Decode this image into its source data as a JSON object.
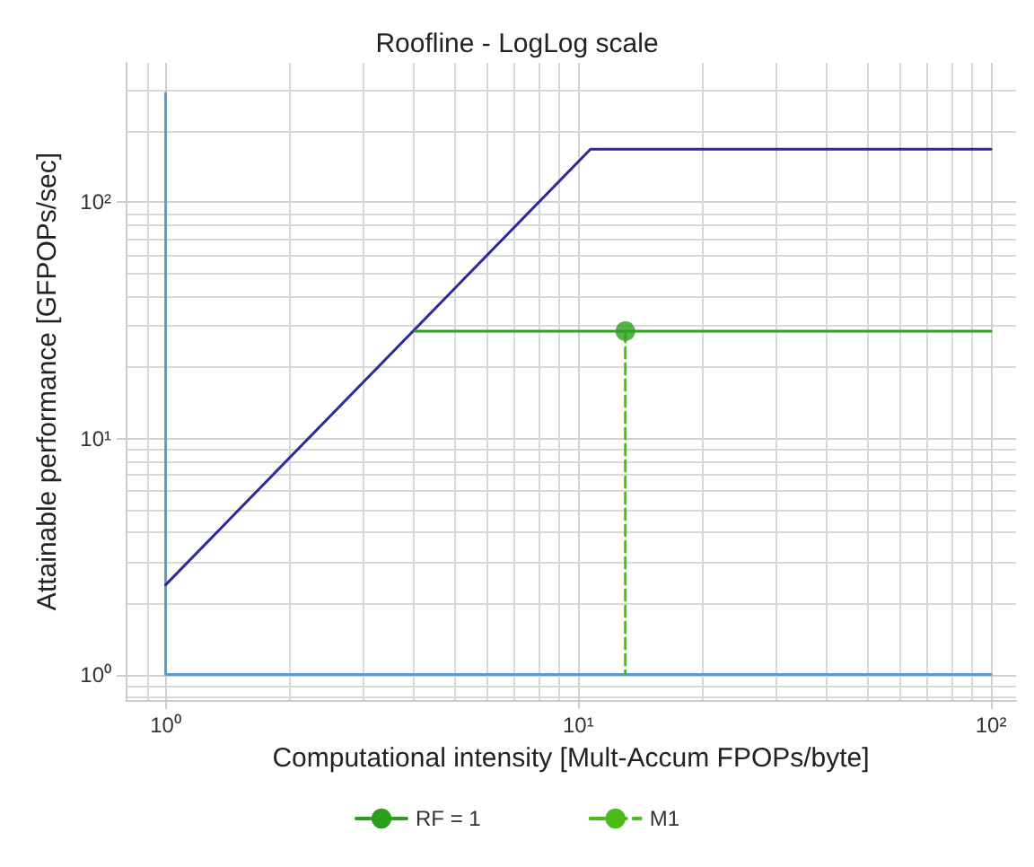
{
  "chart_data": {
    "type": "line",
    "title": "Roofline - LogLog scale",
    "xlabel": "Computational intensity [Mult-Accum FPOPs/byte]",
    "ylabel": "Attainable performance [GFPOPs/sec]",
    "log": "xy",
    "grid": true,
    "legend": "bottom",
    "marker": "none",
    "line_style": "solid",
    "xlim": [
      0.8,
      115
    ],
    "ylim": [
      0.78,
      390
    ],
    "xticks": [
      {
        "value": 1,
        "label": "10⁰"
      },
      {
        "value": 10,
        "label": "10¹"
      },
      {
        "value": 100,
        "label": "10²"
      }
    ],
    "yticks": [
      {
        "value": 1,
        "label": "10⁰"
      },
      {
        "value": 10,
        "label": "10¹"
      },
      {
        "value": 100,
        "label": "10²"
      }
    ],
    "series": [
      {
        "color": "#5b9bd5",
        "x": [
          1,
          1,
          100
        ],
        "values": [
          290,
          1,
          1
        ]
      },
      {
        "color": "#2e2a98",
        "x": [
          1,
          10.7,
          100
        ],
        "values": [
          2.4,
          168,
          168
        ]
      },
      {
        "name": "RF = 1",
        "color": "#2ca01c",
        "x": [
          4.02,
          100
        ],
        "values": [
          28.5,
          28.5
        ]
      },
      {
        "name": "M1",
        "color": "#4cbb17",
        "line_style": "dashed",
        "x": [
          13,
          13
        ],
        "values": [
          28.5,
          1
        ]
      },
      {
        "type": "scatter",
        "marker": "circle",
        "color": "#2ca01c",
        "x": [
          13
        ],
        "values": [
          28.5
        ]
      }
    ]
  }
}
